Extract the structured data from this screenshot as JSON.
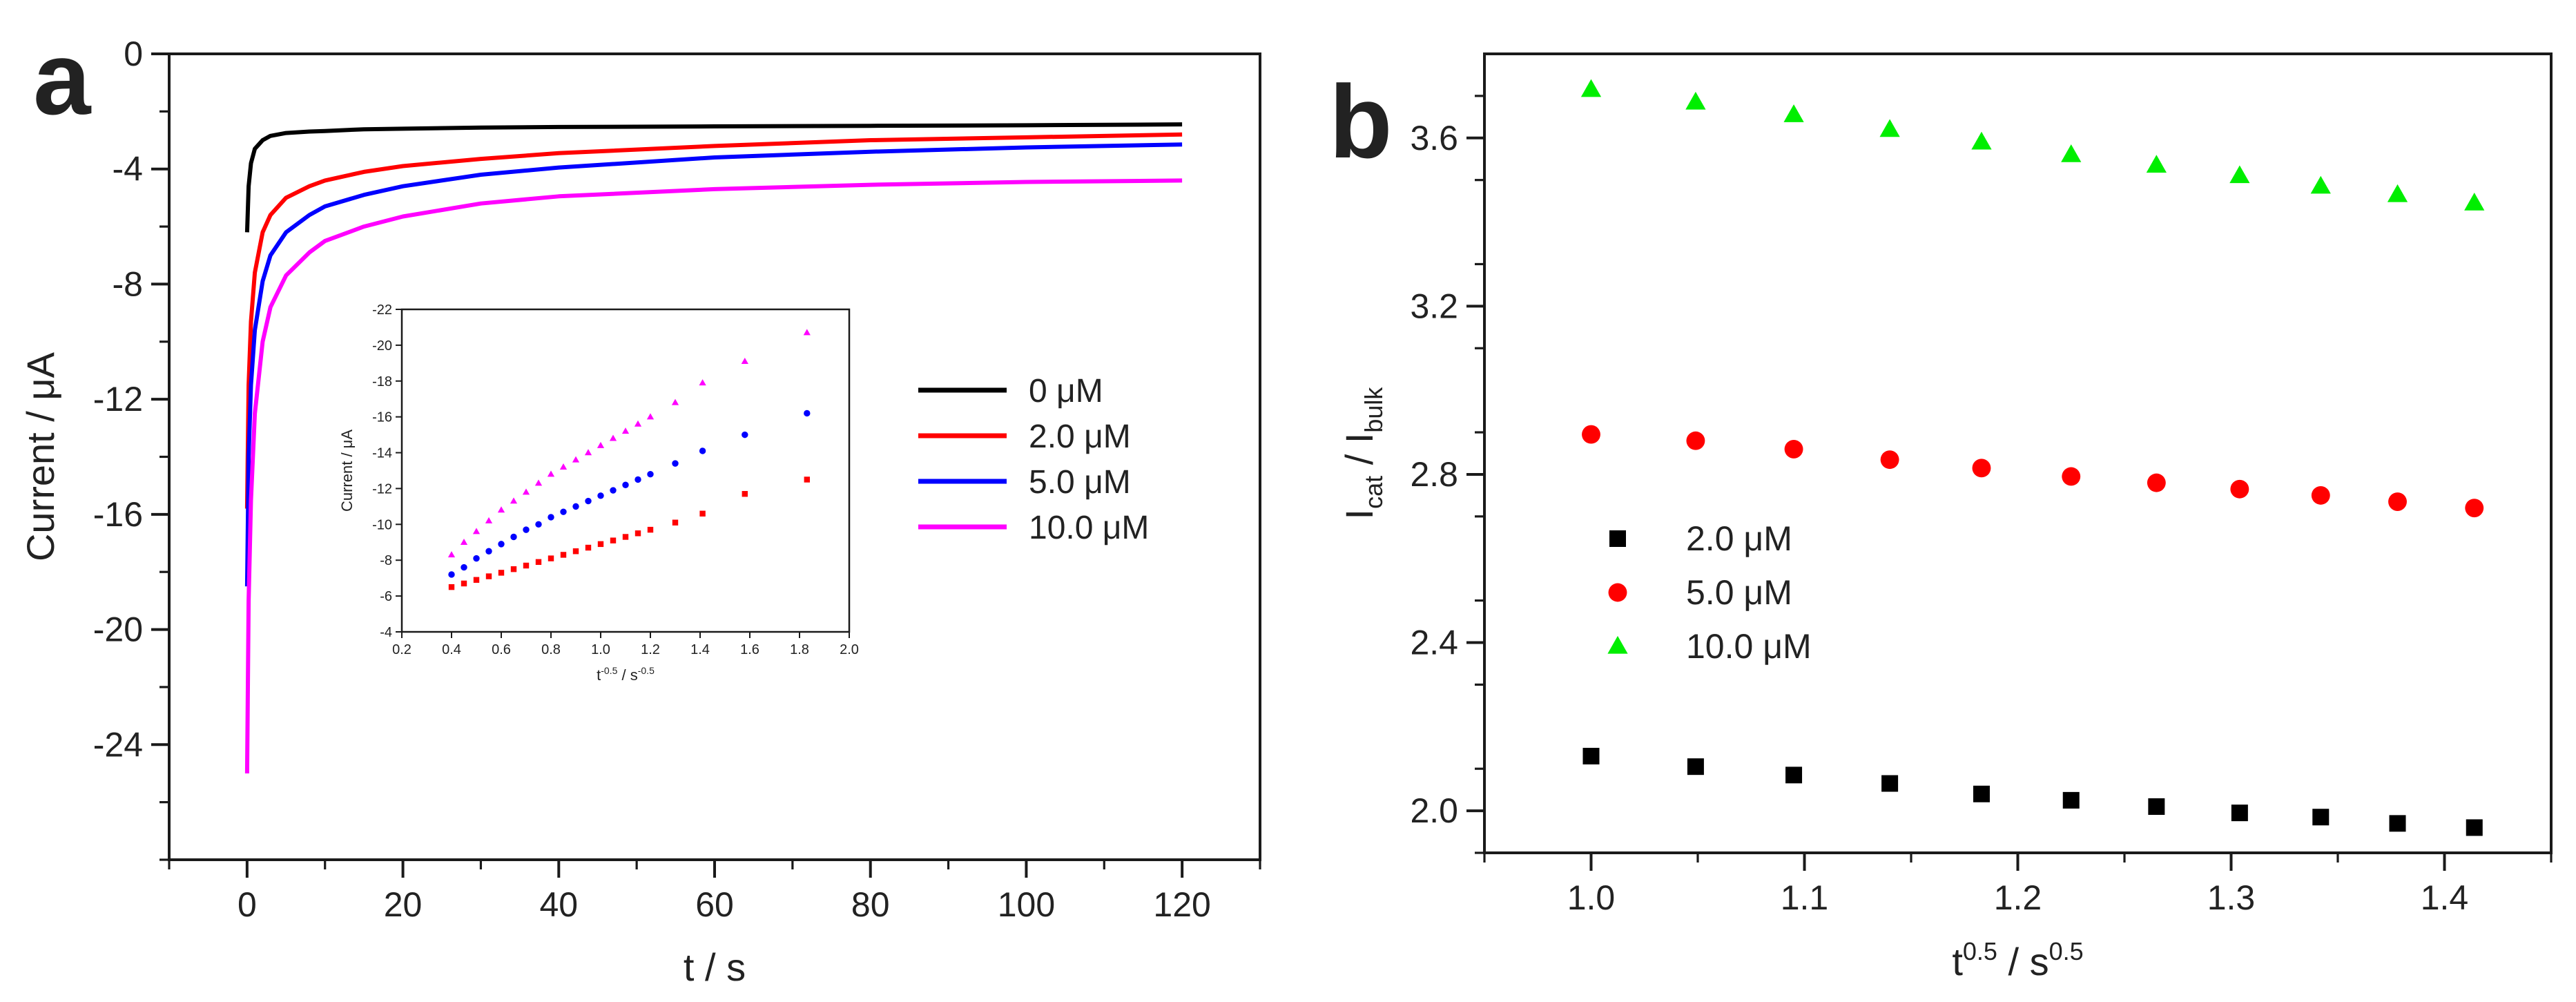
{
  "chart_data": [
    {
      "panel_label": "a",
      "type": "line",
      "title": "",
      "xlabel": "t / s",
      "ylabel": "Current / μA",
      "xlim": [
        -10,
        130
      ],
      "ylim": [
        -28,
        0
      ],
      "xticks": [
        0,
        20,
        40,
        60,
        80,
        100,
        120
      ],
      "yticks": [
        0,
        -4,
        -8,
        -12,
        -16,
        -20,
        -24
      ],
      "grid": false,
      "legend_position": "center-right",
      "series": [
        {
          "name": "0 μM",
          "color": "#000000",
          "start_value": -6.2,
          "end_value": -2.45,
          "x": [
            0,
            0.2,
            0.5,
            1,
            2,
            3,
            5,
            8,
            10,
            15,
            20,
            30,
            40,
            60,
            80,
            100,
            120
          ],
          "values": [
            -6.2,
            -4.6,
            -3.8,
            -3.3,
            -3.0,
            -2.85,
            -2.75,
            -2.7,
            -2.68,
            -2.62,
            -2.6,
            -2.56,
            -2.54,
            -2.52,
            -2.5,
            -2.48,
            -2.45
          ]
        },
        {
          "name": "2.0 μM",
          "color": "#ff0000",
          "start_value": -15.8,
          "end_value": -2.8,
          "x": [
            0,
            0.2,
            0.5,
            1,
            2,
            3,
            5,
            8,
            10,
            15,
            20,
            30,
            40,
            60,
            80,
            100,
            120
          ],
          "values": [
            -15.8,
            -11.5,
            -9.3,
            -7.6,
            -6.2,
            -5.6,
            -5.0,
            -4.6,
            -4.4,
            -4.1,
            -3.9,
            -3.65,
            -3.45,
            -3.2,
            -3.0,
            -2.9,
            -2.8
          ]
        },
        {
          "name": "5.0 μM",
          "color": "#0000ff",
          "start_value": -18.5,
          "end_value": -3.15,
          "x": [
            0,
            0.2,
            0.5,
            1,
            2,
            3,
            5,
            8,
            10,
            15,
            20,
            30,
            40,
            60,
            80,
            100,
            120
          ],
          "values": [
            -18.5,
            -14.0,
            -11.5,
            -9.6,
            -7.9,
            -7.0,
            -6.2,
            -5.6,
            -5.3,
            -4.9,
            -4.6,
            -4.2,
            -3.95,
            -3.6,
            -3.4,
            -3.25,
            -3.15
          ]
        },
        {
          "name": "10.0 μM",
          "color": "#ff00ff",
          "start_value": -25.0,
          "end_value": -4.4,
          "x": [
            0,
            0.2,
            0.5,
            1,
            2,
            3,
            5,
            8,
            10,
            15,
            20,
            30,
            40,
            60,
            80,
            100,
            120
          ],
          "values": [
            -25.0,
            -19.0,
            -15.5,
            -12.5,
            -10.0,
            -8.8,
            -7.7,
            -6.9,
            -6.5,
            -6.0,
            -5.65,
            -5.2,
            -4.95,
            -4.7,
            -4.55,
            -4.45,
            -4.4
          ]
        }
      ]
    },
    {
      "panel_label": "",
      "type": "scatter",
      "role": "inset of panel a",
      "title": "",
      "xlabel": "t-0.5 / s-0.5",
      "ylabel": "Current / μA",
      "xlim": [
        0.2,
        2.0
      ],
      "ylim": [
        -4,
        -22
      ],
      "xticks": [
        "0.2",
        "0.4",
        "0.6",
        "0.8",
        "1.0",
        "1.2",
        "1.4",
        "1.6",
        "1.8",
        "2.0"
      ],
      "yticks": [
        "-22",
        "-20",
        "-18",
        "-16",
        "-14",
        "-12",
        "-10",
        "-8",
        "-6",
        "-4"
      ],
      "grid": false,
      "series": [
        {
          "name": "2.0 μM",
          "color": "#ff0000",
          "marker": "square",
          "x_range": [
            0.4,
            1.83
          ],
          "y_range": [
            -6.5,
            -12.5
          ],
          "x": [
            0.4,
            0.45,
            0.5,
            0.55,
            0.6,
            0.65,
            0.7,
            0.75,
            0.8,
            0.85,
            0.9,
            0.95,
            1.0,
            1.05,
            1.1,
            1.15,
            1.2,
            1.3,
            1.41,
            1.58,
            1.83
          ],
          "values": [
            -6.5,
            -6.7,
            -6.9,
            -7.1,
            -7.3,
            -7.5,
            -7.7,
            -7.9,
            -8.1,
            -8.3,
            -8.5,
            -8.7,
            -8.9,
            -9.1,
            -9.3,
            -9.5,
            -9.7,
            -10.1,
            -10.6,
            -11.7,
            -12.5
          ]
        },
        {
          "name": "5.0 μM",
          "color": "#0000ff",
          "marker": "circle",
          "x_range": [
            0.4,
            1.83
          ],
          "y_range": [
            -7.2,
            -16.2
          ],
          "x": [
            0.4,
            0.45,
            0.5,
            0.55,
            0.6,
            0.65,
            0.7,
            0.75,
            0.8,
            0.85,
            0.9,
            0.95,
            1.0,
            1.05,
            1.1,
            1.15,
            1.2,
            1.3,
            1.41,
            1.58,
            1.83
          ],
          "values": [
            -7.2,
            -7.6,
            -8.1,
            -8.5,
            -8.9,
            -9.3,
            -9.7,
            -10.0,
            -10.4,
            -10.7,
            -11.0,
            -11.3,
            -11.6,
            -11.9,
            -12.2,
            -12.5,
            -12.8,
            -13.4,
            -14.1,
            -15.0,
            -16.2
          ]
        },
        {
          "name": "10.0 μM",
          "color": "#ff00ff",
          "marker": "triangle",
          "x_range": [
            0.4,
            1.83
          ],
          "y_range": [
            -8.3,
            -20.7
          ],
          "x": [
            0.4,
            0.45,
            0.5,
            0.55,
            0.6,
            0.65,
            0.7,
            0.75,
            0.8,
            0.85,
            0.9,
            0.95,
            1.0,
            1.05,
            1.1,
            1.15,
            1.2,
            1.3,
            1.41,
            1.58,
            1.83
          ],
          "values": [
            -8.3,
            -9.0,
            -9.6,
            -10.2,
            -10.8,
            -11.3,
            -11.8,
            -12.3,
            -12.8,
            -13.2,
            -13.6,
            -14.0,
            -14.4,
            -14.8,
            -15.2,
            -15.6,
            -16.0,
            -16.8,
            -17.9,
            -19.1,
            -20.7
          ]
        }
      ]
    },
    {
      "panel_label": "b",
      "type": "scatter",
      "title": "",
      "xlabel": "t0.5 / s0.5",
      "ylabel": "Icat / Ibulk",
      "xlim": [
        0.95,
        1.45
      ],
      "ylim": [
        1.9,
        3.8
      ],
      "xticks": [
        "1.0",
        "1.1",
        "1.2",
        "1.3",
        "1.4"
      ],
      "yticks": [
        "2.0",
        "2.4",
        "2.8",
        "3.2",
        "3.6"
      ],
      "grid": false,
      "legend_position": "left-center",
      "series": [
        {
          "name": "2.0 μM",
          "color": "#000000",
          "marker": "square",
          "x": [
            1.0,
            1.049,
            1.095,
            1.14,
            1.183,
            1.225,
            1.265,
            1.304,
            1.342,
            1.378,
            1.414
          ],
          "values": [
            2.13,
            2.105,
            2.085,
            2.065,
            2.04,
            2.025,
            2.01,
            1.995,
            1.985,
            1.97,
            1.96
          ]
        },
        {
          "name": "5.0 μM",
          "color": "#ff0000",
          "marker": "circle",
          "x": [
            1.0,
            1.049,
            1.095,
            1.14,
            1.183,
            1.225,
            1.265,
            1.304,
            1.342,
            1.378,
            1.414
          ],
          "values": [
            2.895,
            2.88,
            2.86,
            2.835,
            2.815,
            2.795,
            2.78,
            2.765,
            2.75,
            2.735,
            2.72
          ]
        },
        {
          "name": "10.0 μM",
          "color": "#00ee00",
          "marker": "triangle",
          "x": [
            1.0,
            1.049,
            1.095,
            1.14,
            1.183,
            1.225,
            1.265,
            1.304,
            1.342,
            1.378,
            1.414
          ],
          "values": [
            3.715,
            3.685,
            3.655,
            3.62,
            3.59,
            3.56,
            3.535,
            3.51,
            3.485,
            3.465,
            3.445
          ]
        }
      ]
    }
  ]
}
